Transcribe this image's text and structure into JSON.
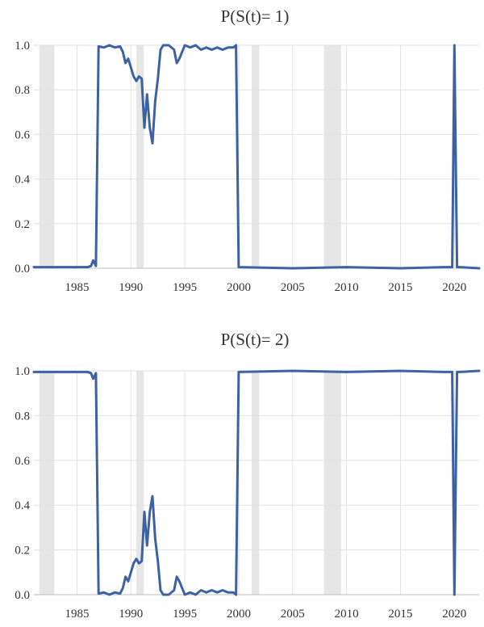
{
  "chart_data": [
    {
      "type": "line",
      "title": "P(S(t)= 1)",
      "xlim": [
        1981.0,
        2022.3
      ],
      "ylim": [
        0,
        1
      ],
      "x_ticks": [
        1985,
        1990,
        1995,
        2000,
        2005,
        2010,
        2015,
        2020
      ],
      "x_tick_labels": [
        "1985",
        "1990",
        "1995",
        "2000",
        "2005",
        "2010",
        "2015",
        "2020"
      ],
      "y_ticks": [
        0,
        0.2,
        0.4,
        0.6,
        0.8,
        1.0
      ],
      "y_tick_labels": [
        "0.0",
        "0.2",
        "0.4",
        "0.6",
        "0.8",
        "1.0"
      ],
      "grid": true,
      "shaded_periods": [
        [
          1981.5,
          1982.9
        ],
        [
          1990.5,
          1991.2
        ],
        [
          2001.2,
          2001.9
        ],
        [
          2007.9,
          2009.5
        ]
      ],
      "series": [
        {
          "x": [
            1981.0,
            1986.0,
            1986.3,
            1986.5,
            1986.75,
            1987.0,
            1987.5,
            1988.0,
            1988.5,
            1989.0,
            1989.25,
            1989.5,
            1989.75,
            1990.0,
            1990.25,
            1990.5,
            1990.75,
            1991.0,
            1991.25,
            1991.5,
            1991.75,
            1992.0,
            1992.25,
            1992.5,
            1992.75,
            1993.0,
            1993.5,
            1994.0,
            1994.25,
            1994.5,
            1995.0,
            1995.5,
            1996.0,
            1996.5,
            1997.0,
            1997.5,
            1998.0,
            1998.5,
            1999.0,
            1999.5,
            1999.75,
            2000.0,
            2005.0,
            2010.0,
            2015.0,
            2019.0,
            2019.8,
            2020.0,
            2020.25,
            2020.5,
            2022.3
          ],
          "values": [
            0.005,
            0.005,
            0.01,
            0.035,
            0.01,
            0.995,
            0.99,
            1.0,
            0.99,
            0.995,
            0.97,
            0.92,
            0.94,
            0.9,
            0.86,
            0.84,
            0.86,
            0.85,
            0.63,
            0.78,
            0.63,
            0.56,
            0.75,
            0.85,
            0.98,
            1.0,
            1.0,
            0.98,
            0.92,
            0.94,
            1.0,
            0.99,
            1.0,
            0.98,
            0.99,
            0.98,
            0.99,
            0.98,
            0.99,
            0.99,
            1.0,
            0.005,
            0.0,
            0.005,
            0.0,
            0.005,
            0.005,
            1.0,
            0.005,
            0.005,
            0.0
          ],
          "color": "#3c62a3"
        }
      ]
    },
    {
      "type": "line",
      "title": "P(S(t)= 2)",
      "xlim": [
        1981.0,
        2022.3
      ],
      "ylim": [
        0,
        1
      ],
      "x_ticks": [
        1985,
        1990,
        1995,
        2000,
        2005,
        2010,
        2015,
        2020
      ],
      "x_tick_labels": [
        "1985",
        "1990",
        "1995",
        "2000",
        "2005",
        "2010",
        "2015",
        "2020"
      ],
      "y_ticks": [
        0,
        0.2,
        0.4,
        0.6,
        0.8,
        1.0
      ],
      "y_tick_labels": [
        "0.0",
        "0.2",
        "0.4",
        "0.6",
        "0.8",
        "1.0"
      ],
      "grid": true,
      "shaded_periods": [
        [
          1981.5,
          1982.9
        ],
        [
          1990.5,
          1991.2
        ],
        [
          2001.2,
          2001.9
        ],
        [
          2007.9,
          2009.5
        ]
      ],
      "series": [
        {
          "x": [
            1981.0,
            1986.0,
            1986.3,
            1986.5,
            1986.75,
            1987.0,
            1987.5,
            1988.0,
            1988.5,
            1989.0,
            1989.25,
            1989.5,
            1989.75,
            1990.0,
            1990.25,
            1990.5,
            1990.75,
            1991.0,
            1991.25,
            1991.5,
            1991.75,
            1992.0,
            1992.25,
            1992.5,
            1992.75,
            1993.0,
            1993.5,
            1994.0,
            1994.25,
            1994.5,
            1995.0,
            1995.5,
            1996.0,
            1996.5,
            1997.0,
            1997.5,
            1998.0,
            1998.5,
            1999.0,
            1999.5,
            1999.75,
            2000.0,
            2005.0,
            2010.0,
            2015.0,
            2019.0,
            2019.8,
            2020.0,
            2020.25,
            2020.5,
            2022.3
          ],
          "values": [
            0.995,
            0.995,
            0.99,
            0.965,
            0.99,
            0.005,
            0.01,
            0.0,
            0.01,
            0.005,
            0.03,
            0.08,
            0.06,
            0.1,
            0.14,
            0.16,
            0.14,
            0.15,
            0.37,
            0.22,
            0.37,
            0.44,
            0.25,
            0.15,
            0.02,
            0.0,
            0.0,
            0.02,
            0.08,
            0.06,
            0.0,
            0.01,
            0.0,
            0.02,
            0.01,
            0.02,
            0.01,
            0.02,
            0.01,
            0.01,
            0.0,
            0.995,
            1.0,
            0.995,
            1.0,
            0.995,
            0.995,
            0.0,
            0.995,
            0.995,
            1.0
          ],
          "color": "#3c62a3"
        }
      ]
    }
  ]
}
